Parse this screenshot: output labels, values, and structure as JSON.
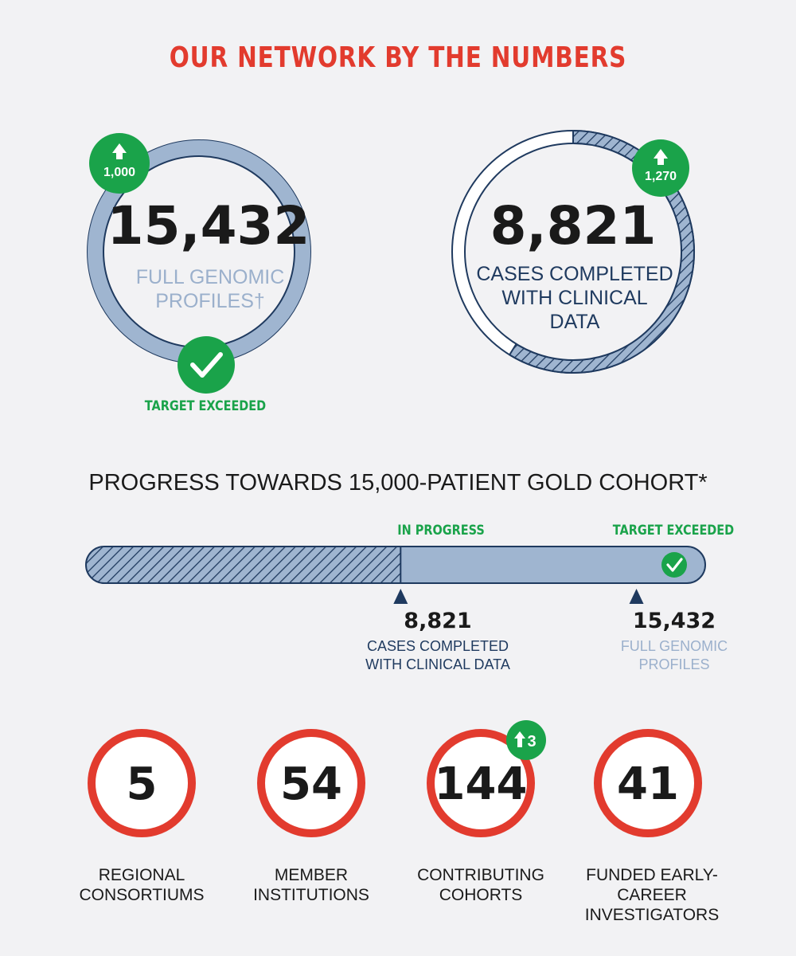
{
  "header": {
    "title": "OUR NETWORK BY THE NUMBERS"
  },
  "colors": {
    "red": "#e23b2e",
    "green": "#1aa34a",
    "navy": "#1f3a5f",
    "light_blue": "#9fb5d0",
    "muted_text": "#9bb0cc",
    "background": "#f2f2f4"
  },
  "genomic_ring": {
    "value": "15,432",
    "label_line1": "FULL GENOMIC",
    "label_line2": "PROFILES†",
    "increase_badge": "1,000",
    "status": "TARGET EXCEEDED",
    "up_icon": "arrow-up-icon",
    "check_icon": "checkmark-icon"
  },
  "clinical_ring": {
    "value": "8,821",
    "label_line1": "CASES COMPLETED",
    "label_line2": "WITH CLINICAL",
    "label_line3": "DATA",
    "increase_badge": "1,270",
    "progress_fraction": 0.588,
    "up_icon": "arrow-up-icon"
  },
  "progress": {
    "title": "PROGRESS TOWARDS 15,000-PATIENT GOLD COHORT*",
    "target": 15000,
    "in_progress_label": "IN PROGRESS",
    "exceeded_label": "TARGET EXCEEDED",
    "clinical_marker": {
      "value": "8,821",
      "amount": 8821,
      "label_line1": "CASES COMPLETED",
      "label_line2": "WITH CLINICAL DATA"
    },
    "genomic_marker": {
      "value": "15,432",
      "amount": 15432,
      "label_line1": "FULL GENOMIC",
      "label_line2": "PROFILES"
    }
  },
  "stats": [
    {
      "value": "5",
      "label_line1": "REGIONAL",
      "label_line2": "CONSORTIUMS"
    },
    {
      "value": "54",
      "label_line1": "MEMBER",
      "label_line2": "INSTITUTIONS"
    },
    {
      "value": "144",
      "label_line1": "CONTRIBUTING",
      "label_line2": "COHORTS",
      "badge": "3"
    },
    {
      "value": "41",
      "label_line1": "FUNDED EARLY-CAREER",
      "label_line2": "INVESTIGATORS"
    }
  ]
}
